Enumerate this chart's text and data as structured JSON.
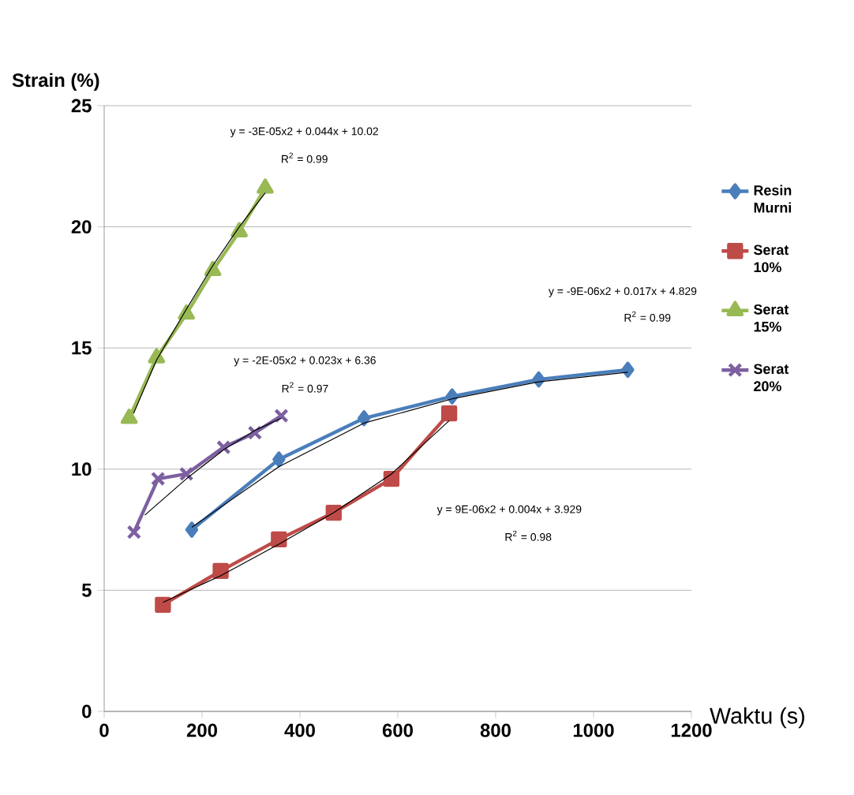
{
  "chart_data": {
    "type": "line",
    "xlabel": "Waktu (s)",
    "ylabel": "Strain (%)",
    "xlim": [
      0,
      1200
    ],
    "xticks": [
      0,
      200,
      400,
      600,
      800,
      1000,
      1200
    ],
    "ylim": [
      0,
      25
    ],
    "yticks": [
      0,
      5,
      10,
      15,
      20,
      25
    ],
    "grid": "y",
    "legend": "right",
    "series": [
      {
        "name": "Resin Murni",
        "color": "#4a7ebb",
        "marker": "diamond",
        "x": [
          179,
          357,
          531,
          711,
          888,
          1070
        ],
        "values": [
          7.5,
          10.4,
          12.1,
          13.0,
          13.7,
          14.1
        ]
      },
      {
        "name": "Serat 10%",
        "color": "#be4b48",
        "marker": "square",
        "x": [
          120,
          238,
          357,
          469,
          587,
          705
        ],
        "values": [
          4.4,
          5.8,
          7.1,
          8.2,
          9.6,
          12.3
        ]
      },
      {
        "name": "Serat 15%",
        "color": "#98b954",
        "marker": "triangle",
        "x": [
          51,
          107,
          168,
          222,
          276,
          329
        ],
        "values": [
          12.1,
          14.6,
          16.4,
          18.2,
          19.8,
          21.6
        ]
      },
      {
        "name": "Serat 20%",
        "color": "#7d60a0",
        "marker": "cross",
        "x": [
          61,
          110,
          168,
          244,
          308,
          362
        ],
        "values": [
          7.4,
          9.6,
          9.8,
          10.9,
          11.5,
          12.2
        ]
      },
      {
        "color": "#000000",
        "marker": "none",
        "x": [
          179,
          357,
          531,
          711,
          888,
          1070
        ],
        "values": [
          7.6,
          10.1,
          11.9,
          12.9,
          13.6,
          14.0
        ]
      },
      {
        "color": "#000000",
        "marker": "none",
        "x": [
          120,
          238,
          357,
          469,
          587,
          705
        ],
        "values": [
          4.5,
          5.6,
          6.9,
          8.2,
          9.8,
          12.0
        ]
      },
      {
        "color": "#000000",
        "marker": "none",
        "x": [
          60,
          107,
          168,
          222,
          276,
          329
        ],
        "values": [
          12.3,
          14.5,
          16.6,
          18.4,
          20.0,
          21.4
        ]
      },
      {
        "color": "#000000",
        "marker": "none",
        "x": [
          83,
          168,
          244,
          308,
          362
        ],
        "values": [
          8.1,
          9.6,
          10.8,
          11.6,
          12.1
        ]
      }
    ],
    "annotations": [
      "y = -3E-05x2 + 0.044x + 10.02",
      "R$^{2}$ = 0.99",
      "y = -2E-05x2 + 0.023x + 6.36",
      "R$^{2}$ = 0.97",
      "y = -9E-06x2 + 0.017x + 4.829",
      "R$^{2}$ = 0.99",
      "y = 9E-06x2 + 0.004x + 3.929",
      "R$^{2}$ = 0.98"
    ]
  }
}
